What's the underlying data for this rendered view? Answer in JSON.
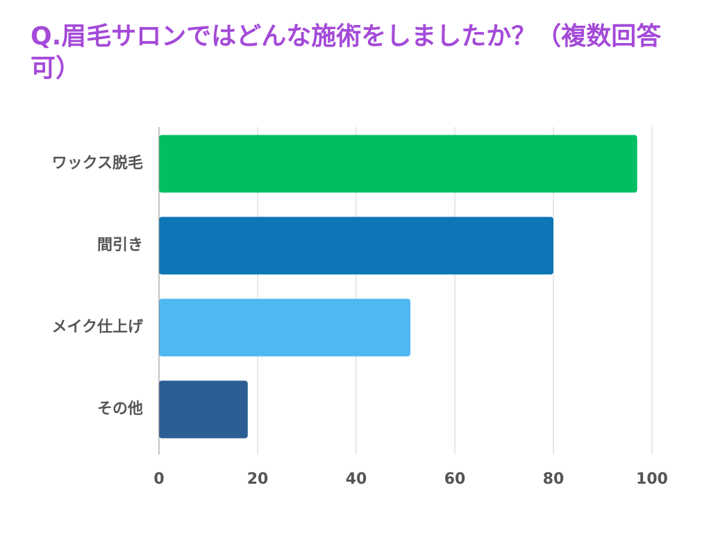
{
  "chart_data": {
    "type": "bar",
    "orientation": "horizontal",
    "title": "Q.眉毛サロンではどんな施術をしましたか？（複数回答可）",
    "categories": [
      "ワックス脱毛",
      "間引き",
      "メイク仕上げ",
      "その他"
    ],
    "values": [
      97,
      80,
      51,
      18
    ],
    "colors": [
      "#00bf63",
      "#0c76b7",
      "#4fb8f2",
      "#2c5e95"
    ],
    "xlim": [
      0,
      100
    ],
    "xticks": [
      0,
      20,
      40,
      60,
      80,
      100
    ],
    "grid": true,
    "legend": "none"
  }
}
